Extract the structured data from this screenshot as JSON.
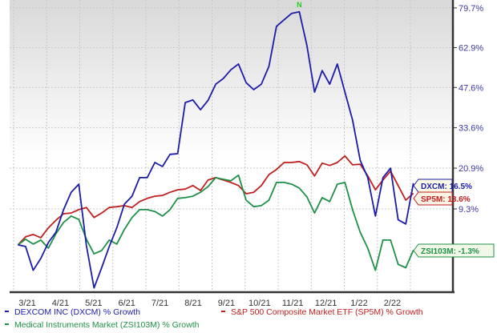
{
  "chart_data": {
    "type": "line",
    "y_scale": "log(1+growth)",
    "grid": true,
    "legend": "bottom",
    "y_ticks": [
      "79.7%",
      "62.9%",
      "47.6%",
      "33.6%",
      "20.9%",
      "9.3%"
    ],
    "y_tick_values": [
      79.7,
      62.9,
      47.6,
      33.6,
      20.9,
      9.3
    ],
    "x_ticks": [
      "3/21",
      "4/21",
      "5/21",
      "6/21",
      "7/21",
      "8/21",
      "9/21",
      "10/21",
      "11/21",
      "12/21",
      "1/22",
      "2/22"
    ],
    "marker": {
      "label": "N",
      "x": "2021-11-19",
      "color": "#22cc22"
    },
    "x": [
      "2021-03-05",
      "2021-03-12",
      "2021-03-19",
      "2021-03-26",
      "2021-04-02",
      "2021-04-09",
      "2021-04-16",
      "2021-04-23",
      "2021-04-30",
      "2021-05-07",
      "2021-05-14",
      "2021-05-21",
      "2021-05-28",
      "2021-06-04",
      "2021-06-11",
      "2021-06-18",
      "2021-06-25",
      "2021-07-02",
      "2021-07-09",
      "2021-07-16",
      "2021-07-23",
      "2021-07-30",
      "2021-08-06",
      "2021-08-13",
      "2021-08-20",
      "2021-08-27",
      "2021-09-03",
      "2021-09-10",
      "2021-09-17",
      "2021-09-24",
      "2021-10-01",
      "2021-10-08",
      "2021-10-15",
      "2021-10-22",
      "2021-10-29",
      "2021-11-05",
      "2021-11-12",
      "2021-11-19",
      "2021-11-26",
      "2021-12-03",
      "2021-12-10",
      "2021-12-17",
      "2021-12-24",
      "2021-12-31",
      "2022-01-07",
      "2022-01-14",
      "2022-01-21",
      "2022-01-28",
      "2022-02-04",
      "2022-02-11",
      "2022-02-18",
      "2022-02-25",
      "2022-03-04"
    ],
    "series": [
      {
        "name": "DEXCOM INC (DXCM) % Growth",
        "tag": "DXCM: 16.5%",
        "color": "#1c1ca8",
        "flag_fill": "#fbfbe8",
        "values": [
          0,
          -0.4,
          -6.1,
          -3.3,
          0.6,
          3.2,
          9.1,
          13.9,
          16.2,
          -0.2,
          -10.1,
          -5.5,
          -0.4,
          4.3,
          10.6,
          12.8,
          18.1,
          18.1,
          22.6,
          21.4,
          25.1,
          25.3,
          42.2,
          43.1,
          39.7,
          43.0,
          48.8,
          50.9,
          54.2,
          56.4,
          49.4,
          46.8,
          48.8,
          55.5,
          71.7,
          74.5,
          77.3,
          78.0,
          63.7,
          45.9,
          53.9,
          48.8,
          56.4,
          45.9,
          36.2,
          23.3,
          18.1,
          7.4,
          18.1,
          20.9,
          6.4,
          5.3,
          16.5
        ]
      },
      {
        "name": "S&P 500 Composite Market ETF (SP5M) % Growth",
        "tag": "SP5M: 13.6%",
        "color": "#c0201f",
        "flag_fill": "#fbf3e4",
        "values": [
          0,
          2.0,
          2.6,
          1.8,
          4.3,
          6.3,
          8.0,
          8.2,
          9.1,
          9.7,
          7.0,
          8.2,
          9.7,
          9.9,
          10.2,
          9.7,
          11.3,
          12.2,
          12.8,
          13.0,
          13.9,
          14.6,
          14.8,
          15.8,
          14.4,
          17.4,
          18.1,
          17.4,
          16.7,
          15.8,
          13.5,
          13.9,
          15.8,
          19.0,
          20.5,
          22.6,
          22.6,
          22.9,
          21.9,
          18.6,
          22.4,
          21.7,
          22.6,
          24.6,
          21.9,
          22.1,
          18.6,
          14.6,
          17.4,
          20.0,
          15.8,
          11.7,
          13.6
        ]
      },
      {
        "name": "Medical Instruments Market (ZSI103M) % Growth",
        "tag": "ZSI103M: -1.3%",
        "color": "#1f9048",
        "flag_fill": "#f1f8e8",
        "values": [
          0,
          1.4,
          0.2,
          1.2,
          -0.8,
          2.8,
          5.7,
          7.4,
          6.5,
          1.4,
          -2.2,
          -1.4,
          1.2,
          0.2,
          3.9,
          7.0,
          9.1,
          9.1,
          8.6,
          7.4,
          9.1,
          12.2,
          12.4,
          12.8,
          13.9,
          15.5,
          18.1,
          17.6,
          17.2,
          18.8,
          11.7,
          9.9,
          10.2,
          11.7,
          16.7,
          16.7,
          16.2,
          15.1,
          12.6,
          8.2,
          12.4,
          11.3,
          16.2,
          16.7,
          9.1,
          3.2,
          -0.8,
          -6.1,
          1.2,
          1.2,
          -4.7,
          -5.5,
          -1.3
        ]
      }
    ]
  }
}
